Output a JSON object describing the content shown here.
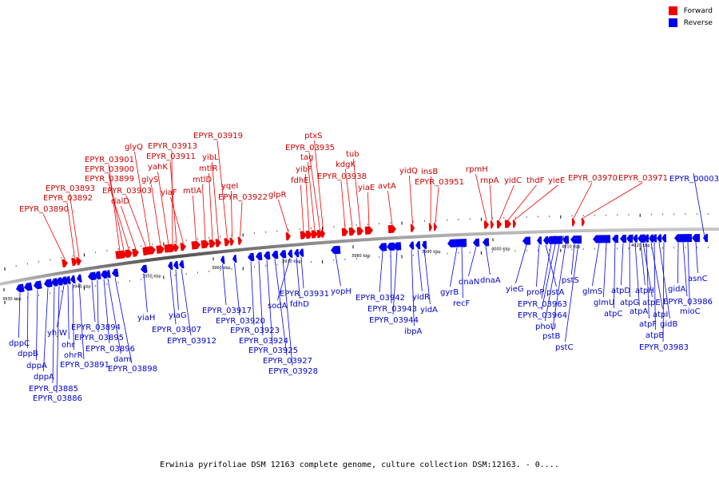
{
  "legend": {
    "forward_label": "Forward",
    "reverse_label": "Reverse",
    "forward_color": "#ee0000",
    "reverse_color": "#0000ee"
  },
  "caption": "Erwinia pyrifoliae DSM 12163 complete genome, culture collection DSM:12163. - 0....",
  "forward_genes": [
    "EPYR_03890",
    "EPYR_03892",
    "EPYR_03893",
    "EPYR_03901",
    "EPYR_03900",
    "EPYR_03899",
    "dalD",
    "EPYR_03903",
    "glyQ",
    "glyS",
    "yahK",
    "EPYR_03913",
    "EPYR_03911",
    "yiaF",
    "mtlA",
    "mtlD",
    "mtlR",
    "yibL",
    "EPYR_03919",
    "yqeI",
    "EPYR_03922",
    "glpR",
    "fdhE",
    "yibF",
    "tag",
    "EPYR_03935",
    "ptxS",
    "EPYR_03938",
    "kdgK",
    "tub",
    "yiaE",
    "avtA",
    "yidQ",
    "insB",
    "EPYR_03951",
    "rpmH",
    "rnpA",
    "yidC",
    "thdF",
    "yieE",
    "EPYR_03970",
    "EPYR_03971"
  ],
  "reverse_genes": [
    "EPYR_00003",
    "dppC",
    "dppB",
    "dppA",
    "dppA",
    "EPYR_03885",
    "EPYR_03886",
    "yhjW",
    "ohr",
    "ohrR",
    "EPYR_03891",
    "EPYR_03894",
    "EPYR_03895",
    "EPYR_03896",
    "dam",
    "EPYR_03898",
    "yiaH",
    "EPYR_03907",
    "yiaG",
    "EPYR_03912",
    "EPYR_03917",
    "EPYR_03920",
    "EPYR_03923",
    "EPYR_03924",
    "EPYR_03925",
    "EPYR_03927",
    "EPYR_03928",
    "sodA",
    "fdhD",
    "EPYR_03931",
    "yopH",
    "EPYR_03942",
    "EPYR_03943",
    "EPYR_03944",
    "ibpA",
    "yidR",
    "yidA",
    "gyrB",
    "recF",
    "dnaN",
    "dnaA",
    "yieG",
    "proP",
    "pstA",
    "EPYR_03963",
    "EPYR_03964",
    "phoU",
    "pstB",
    "pstS",
    "pstC",
    "glmS",
    "glmU",
    "atpC",
    "atpD",
    "atpG",
    "atpA",
    "atpH",
    "atpE",
    "atpF",
    "atpI",
    "atpB",
    "gidB",
    "EPYR_03983",
    "gidA",
    "EPYR_03986",
    "mioC",
    "asnC"
  ],
  "scale_labels": [
    "3930 kbp",
    "3940 kbp",
    "3950 kbp",
    "3960 kbp",
    "3970 kbp",
    "3980 kbp",
    "3990 kbp",
    "4000 kbp",
    "4010 kbp",
    "4020 kbp"
  ]
}
